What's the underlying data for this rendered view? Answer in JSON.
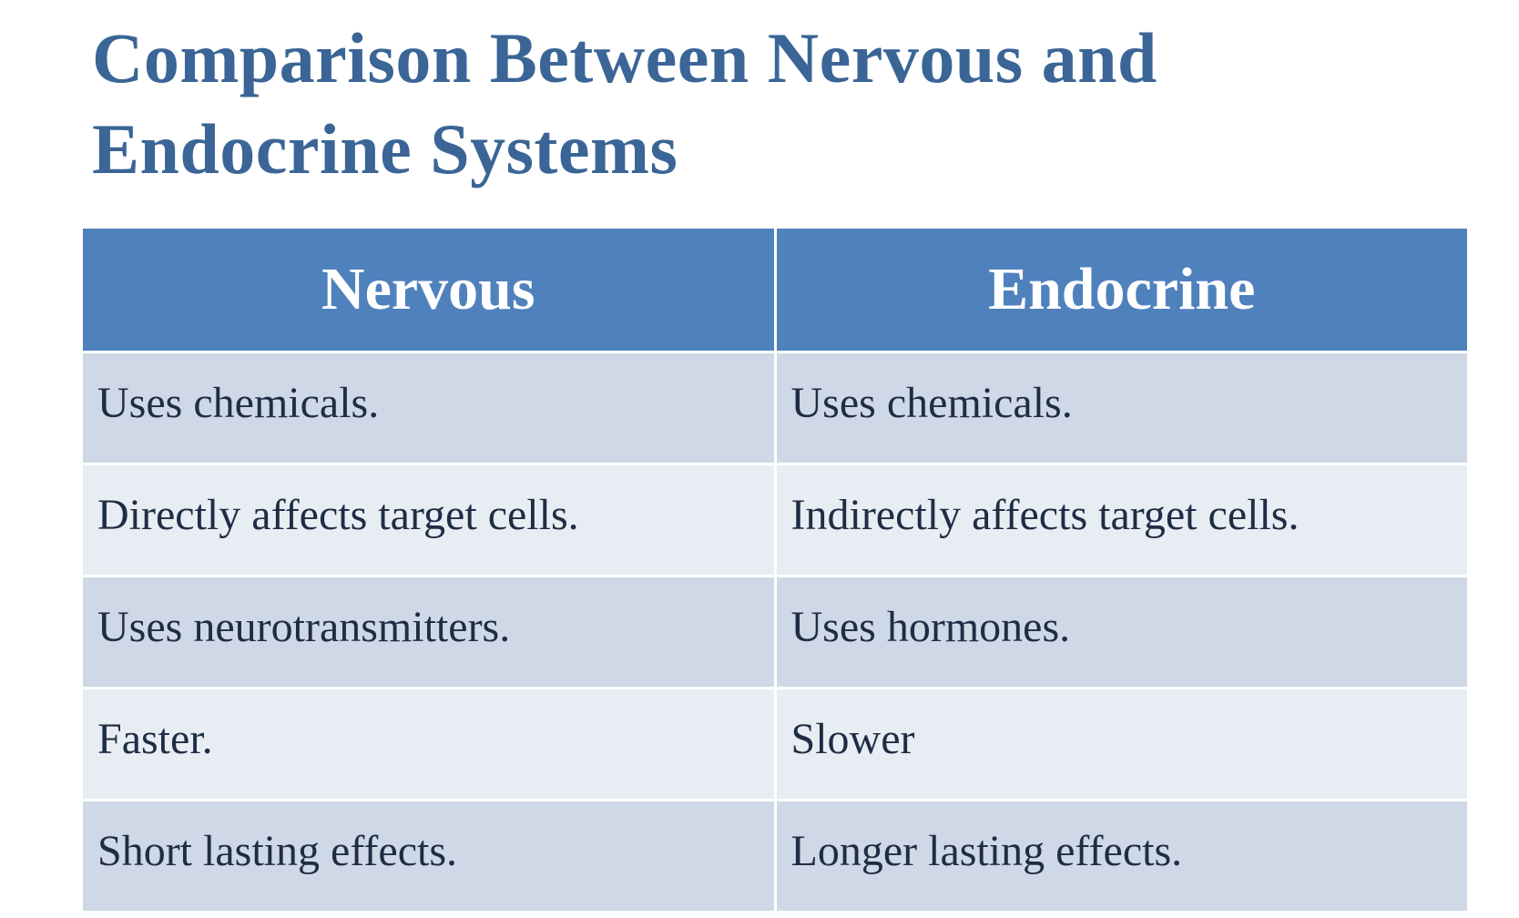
{
  "title": "Comparison Between Nervous and Endocrine Systems",
  "table": {
    "header": [
      "Nervous",
      "Endocrine"
    ],
    "rows": [
      [
        "Uses chemicals.",
        "Uses chemicals."
      ],
      [
        "Directly affects target cells.",
        "Indirectly affects target cells."
      ],
      [
        "Uses neurotransmitters.",
        "Uses hormones."
      ],
      [
        "Faster.",
        "Slower"
      ],
      [
        "Short lasting effects.",
        "Longer lasting effects."
      ]
    ]
  }
}
